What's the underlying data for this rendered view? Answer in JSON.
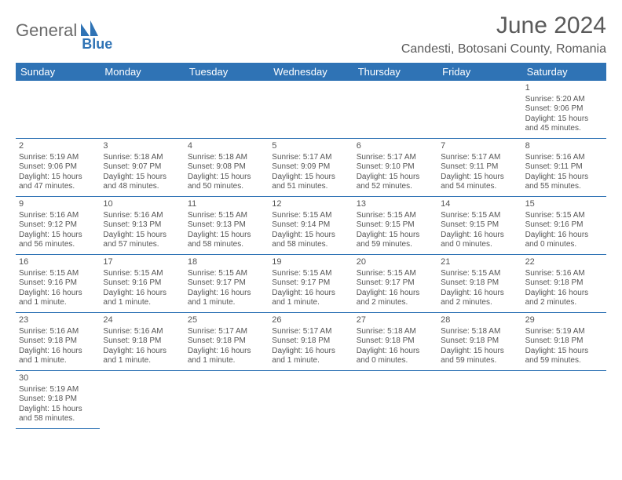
{
  "brand": {
    "general": "General",
    "blue": "Blue"
  },
  "title": "June 2024",
  "location": "Candesti, Botosani County, Romania",
  "colors": {
    "header_bg": "#2f73b5",
    "header_text": "#ffffff",
    "cell_border": "#2f73b5",
    "body_text": "#555555",
    "title_text": "#5a5a5a"
  },
  "day_headers": [
    "Sunday",
    "Monday",
    "Tuesday",
    "Wednesday",
    "Thursday",
    "Friday",
    "Saturday"
  ],
  "leading_blanks": 6,
  "days": [
    {
      "n": 1,
      "sunrise": "5:20 AM",
      "sunset": "9:06 PM",
      "daylight": "15 hours and 45 minutes."
    },
    {
      "n": 2,
      "sunrise": "5:19 AM",
      "sunset": "9:06 PM",
      "daylight": "15 hours and 47 minutes."
    },
    {
      "n": 3,
      "sunrise": "5:18 AM",
      "sunset": "9:07 PM",
      "daylight": "15 hours and 48 minutes."
    },
    {
      "n": 4,
      "sunrise": "5:18 AM",
      "sunset": "9:08 PM",
      "daylight": "15 hours and 50 minutes."
    },
    {
      "n": 5,
      "sunrise": "5:17 AM",
      "sunset": "9:09 PM",
      "daylight": "15 hours and 51 minutes."
    },
    {
      "n": 6,
      "sunrise": "5:17 AM",
      "sunset": "9:10 PM",
      "daylight": "15 hours and 52 minutes."
    },
    {
      "n": 7,
      "sunrise": "5:17 AM",
      "sunset": "9:11 PM",
      "daylight": "15 hours and 54 minutes."
    },
    {
      "n": 8,
      "sunrise": "5:16 AM",
      "sunset": "9:11 PM",
      "daylight": "15 hours and 55 minutes."
    },
    {
      "n": 9,
      "sunrise": "5:16 AM",
      "sunset": "9:12 PM",
      "daylight": "15 hours and 56 minutes."
    },
    {
      "n": 10,
      "sunrise": "5:16 AM",
      "sunset": "9:13 PM",
      "daylight": "15 hours and 57 minutes."
    },
    {
      "n": 11,
      "sunrise": "5:15 AM",
      "sunset": "9:13 PM",
      "daylight": "15 hours and 58 minutes."
    },
    {
      "n": 12,
      "sunrise": "5:15 AM",
      "sunset": "9:14 PM",
      "daylight": "15 hours and 58 minutes."
    },
    {
      "n": 13,
      "sunrise": "5:15 AM",
      "sunset": "9:15 PM",
      "daylight": "15 hours and 59 minutes."
    },
    {
      "n": 14,
      "sunrise": "5:15 AM",
      "sunset": "9:15 PM",
      "daylight": "16 hours and 0 minutes."
    },
    {
      "n": 15,
      "sunrise": "5:15 AM",
      "sunset": "9:16 PM",
      "daylight": "16 hours and 0 minutes."
    },
    {
      "n": 16,
      "sunrise": "5:15 AM",
      "sunset": "9:16 PM",
      "daylight": "16 hours and 1 minute."
    },
    {
      "n": 17,
      "sunrise": "5:15 AM",
      "sunset": "9:16 PM",
      "daylight": "16 hours and 1 minute."
    },
    {
      "n": 18,
      "sunrise": "5:15 AM",
      "sunset": "9:17 PM",
      "daylight": "16 hours and 1 minute."
    },
    {
      "n": 19,
      "sunrise": "5:15 AM",
      "sunset": "9:17 PM",
      "daylight": "16 hours and 1 minute."
    },
    {
      "n": 20,
      "sunrise": "5:15 AM",
      "sunset": "9:17 PM",
      "daylight": "16 hours and 2 minutes."
    },
    {
      "n": 21,
      "sunrise": "5:15 AM",
      "sunset": "9:18 PM",
      "daylight": "16 hours and 2 minutes."
    },
    {
      "n": 22,
      "sunrise": "5:16 AM",
      "sunset": "9:18 PM",
      "daylight": "16 hours and 2 minutes."
    },
    {
      "n": 23,
      "sunrise": "5:16 AM",
      "sunset": "9:18 PM",
      "daylight": "16 hours and 1 minute."
    },
    {
      "n": 24,
      "sunrise": "5:16 AM",
      "sunset": "9:18 PM",
      "daylight": "16 hours and 1 minute."
    },
    {
      "n": 25,
      "sunrise": "5:17 AM",
      "sunset": "9:18 PM",
      "daylight": "16 hours and 1 minute."
    },
    {
      "n": 26,
      "sunrise": "5:17 AM",
      "sunset": "9:18 PM",
      "daylight": "16 hours and 1 minute."
    },
    {
      "n": 27,
      "sunrise": "5:18 AM",
      "sunset": "9:18 PM",
      "daylight": "16 hours and 0 minutes."
    },
    {
      "n": 28,
      "sunrise": "5:18 AM",
      "sunset": "9:18 PM",
      "daylight": "15 hours and 59 minutes."
    },
    {
      "n": 29,
      "sunrise": "5:19 AM",
      "sunset": "9:18 PM",
      "daylight": "15 hours and 59 minutes."
    },
    {
      "n": 30,
      "sunrise": "5:19 AM",
      "sunset": "9:18 PM",
      "daylight": "15 hours and 58 minutes."
    }
  ],
  "labels": {
    "sunrise": "Sunrise:",
    "sunset": "Sunset:",
    "daylight": "Daylight:"
  }
}
